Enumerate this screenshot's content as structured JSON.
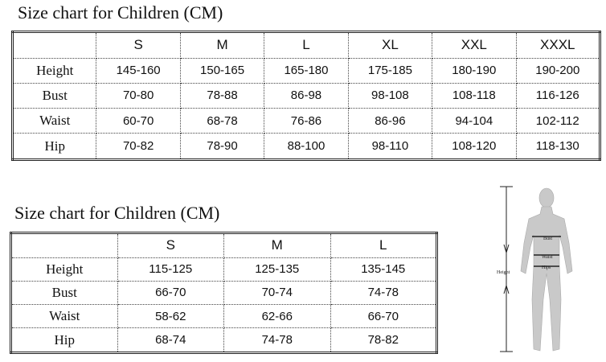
{
  "tables": [
    {
      "title": "Size chart for Children (CM)",
      "header": [
        "S",
        "M",
        "L",
        "XL",
        "XXL",
        "XXXL"
      ],
      "rows": [
        [
          "Height",
          "145-160",
          "150-165",
          "165-180",
          "175-185",
          "180-190",
          "190-200"
        ],
        [
          "Bust",
          "70-80",
          "78-88",
          "86-98",
          "98-108",
          "108-118",
          "116-126"
        ],
        [
          "Waist",
          "60-70",
          "68-78",
          "76-86",
          "86-96",
          "94-104",
          "102-112"
        ],
        [
          "Hip",
          "70-82",
          "78-90",
          "88-100",
          "98-110",
          "108-120",
          "118-130"
        ]
      ]
    },
    {
      "title": "Size chart for Children (CM)",
      "header": [
        "S",
        "M",
        "L"
      ],
      "rows": [
        [
          "Height",
          "115-125",
          "125-135",
          "135-145"
        ],
        [
          "Bust",
          "66-70",
          "70-74",
          "74-78"
        ],
        [
          "Waist",
          "58-62",
          "62-66",
          "66-70"
        ],
        [
          "Hip",
          "68-74",
          "74-78",
          "78-82"
        ]
      ]
    }
  ],
  "figure": {
    "labels": {
      "bust": "Bust",
      "waist": "Waist",
      "hips": "Hips",
      "height": "Height"
    }
  }
}
